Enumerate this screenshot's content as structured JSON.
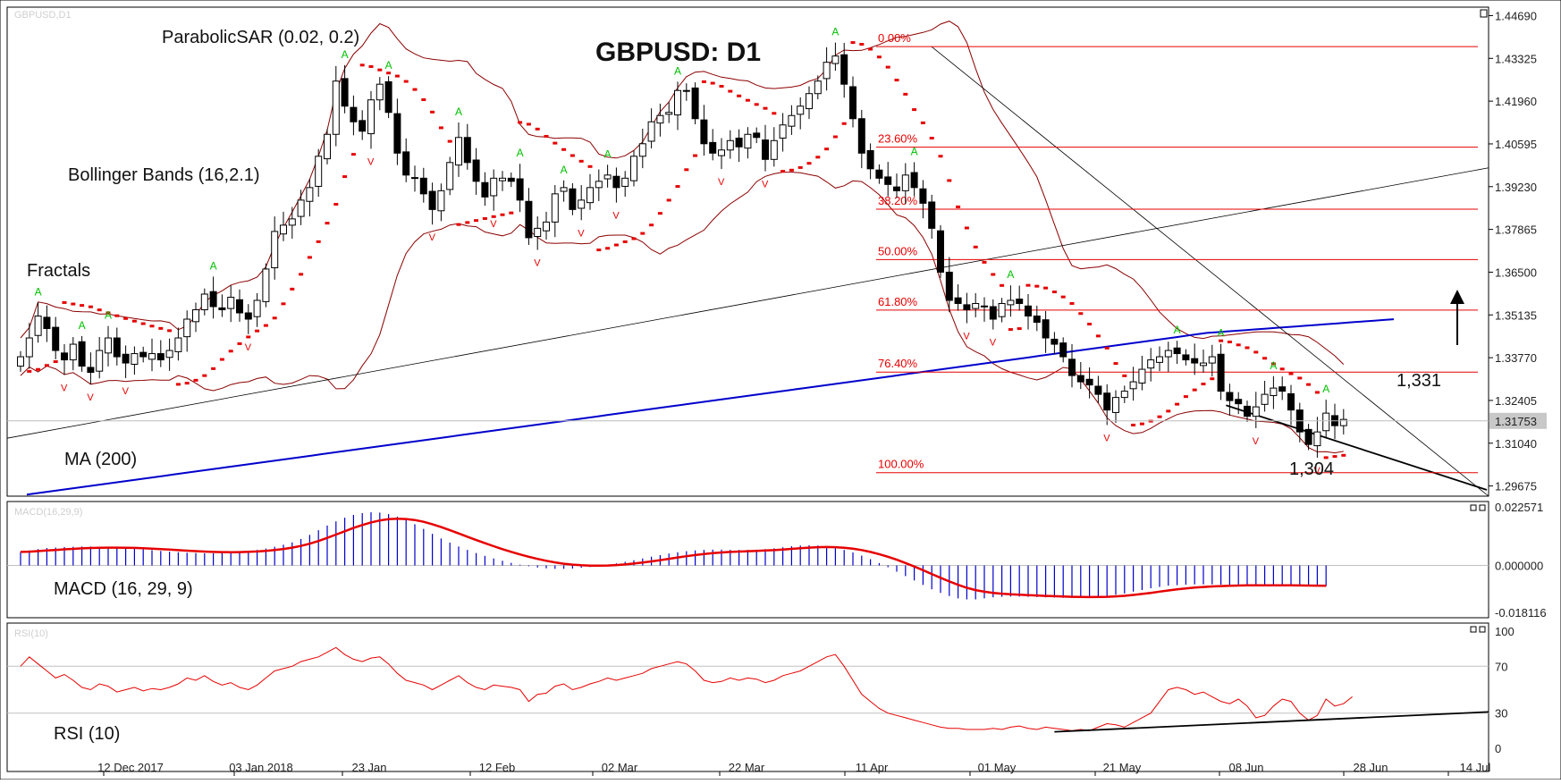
{
  "chart_data": [
    {
      "type": "candlestick",
      "title": "GBPUSD: D1",
      "symbol_title": "GBPUSD,D1",
      "price_axis_ticks": [
        "1.44690",
        "1.43325",
        "1.41960",
        "1.40595",
        "1.39230",
        "1.37865",
        "1.36500",
        "1.35135",
        "1.33770",
        "1.32405",
        "1.31040",
        "1.29675"
      ],
      "current_price": "1.31753",
      "date_ticks": [
        "12 Dec 2017",
        "03 Jan 2018",
        "23 Jan",
        "12 Feb",
        "02 Mar",
        "22 Mar",
        "11 Apr",
        "01 May",
        "21 May",
        "08 Jun",
        "28 Jun",
        "14 Jul"
      ],
      "ylim": [
        1.2935,
        1.4496
      ],
      "closes": [
        1.338,
        1.344,
        1.351,
        1.347,
        1.34,
        1.337,
        1.342,
        1.335,
        1.333,
        1.34,
        1.344,
        1.338,
        1.336,
        1.339,
        1.338,
        1.339,
        1.337,
        1.34,
        1.344,
        1.35,
        1.353,
        1.358,
        1.354,
        1.353,
        1.357,
        1.352,
        1.35,
        1.356,
        1.366,
        1.378,
        1.38,
        1.382,
        1.388,
        1.392,
        1.402,
        1.409,
        1.426,
        1.418,
        1.413,
        1.41,
        1.42,
        1.425,
        1.416,
        1.403,
        1.396,
        1.395,
        1.39,
        1.385,
        1.391,
        1.4,
        1.408,
        1.4,
        1.394,
        1.389,
        1.395,
        1.395,
        1.394,
        1.388,
        1.376,
        1.379,
        1.381,
        1.39,
        1.392,
        1.385,
        1.388,
        1.392,
        1.394,
        1.396,
        1.392,
        1.395,
        1.402,
        1.406,
        1.413,
        1.415,
        1.416,
        1.423,
        1.423,
        1.414,
        1.406,
        1.403,
        1.404,
        1.407,
        1.405,
        1.409,
        1.408,
        1.401,
        1.407,
        1.412,
        1.415,
        1.418,
        1.422,
        1.426,
        1.432,
        1.434,
        1.425,
        1.414,
        1.403,
        1.398,
        1.395,
        1.393,
        1.391,
        1.396,
        1.392,
        1.387,
        1.379,
        1.365,
        1.356,
        1.355,
        1.353,
        1.355,
        1.354,
        1.35,
        1.355,
        1.356,
        1.355,
        1.351,
        1.349,
        1.344,
        1.342,
        1.338,
        1.332,
        1.33,
        1.329,
        1.326,
        1.321,
        1.325,
        1.327,
        1.33,
        1.334,
        1.337,
        1.338,
        1.34,
        1.339,
        1.337,
        1.336,
        1.336,
        1.338,
        1.327,
        1.324,
        1.323,
        1.319,
        1.322,
        1.326,
        1.328,
        1.327,
        1.321,
        1.314,
        1.31,
        1.314,
        1.32,
        1.316,
        1.318
      ],
      "indicators": [
        {
          "name": "ParabolicSAR (0.02, 0.2)",
          "color": "#e60000"
        },
        {
          "name": "Bollinger Bands (16,2.1)",
          "color": "#8b0000"
        },
        {
          "name": "Fractals",
          "colors": [
            "#00c000",
            "#e60000"
          ]
        },
        {
          "name": "MA (200)",
          "color": "#0000cc"
        }
      ],
      "fibonacci": {
        "color": "#e60000",
        "levels": [
          {
            "label": "0.00%",
            "price": 1.437
          },
          {
            "label": "23.60%",
            "price": 1.4049
          },
          {
            "label": "38.20%",
            "price": 1.3851
          },
          {
            "label": "50.00%",
            "price": 1.369
          },
          {
            "label": "61.80%",
            "price": 1.3529
          },
          {
            "label": "76.40%",
            "price": 1.3331
          },
          {
            "label": "100.00%",
            "price": 1.301
          }
        ]
      },
      "annotations": {
        "resistance": "1,331",
        "support": "1,304"
      }
    },
    {
      "type": "histogram",
      "title": "MACD (16, 29, 9)",
      "panel_header": "MACD(16,29,9)",
      "axis_ticks": [
        "0.022571",
        "0.000000",
        "-0.018116"
      ],
      "ylim": [
        -0.0181,
        0.0226
      ],
      "histogram_values": [
        0.0052,
        0.0058,
        0.0063,
        0.0067,
        0.0069,
        0.0071,
        0.0072,
        0.0073,
        0.0073,
        0.0072,
        0.007,
        0.0069,
        0.0067,
        0.0065,
        0.0062,
        0.0059,
        0.0056,
        0.0053,
        0.0051,
        0.0049,
        0.0048,
        0.0047,
        0.0047,
        0.0048,
        0.005,
        0.0053,
        0.0056,
        0.006,
        0.0065,
        0.0072,
        0.008,
        0.0089,
        0.0102,
        0.0118,
        0.0136,
        0.0154,
        0.017,
        0.0184,
        0.0195,
        0.0202,
        0.0205,
        0.0204,
        0.0198,
        0.0188,
        0.0175,
        0.0159,
        0.0141,
        0.0122,
        0.0104,
        0.0088,
        0.0073,
        0.006,
        0.0048,
        0.0037,
        0.0027,
        0.0018,
        0.001,
        0.0003,
        -0.0003,
        -0.0008,
        -0.0011,
        -0.0013,
        -0.0013,
        -0.0012,
        -0.0009,
        -0.0006,
        -0.0002,
        0.0003,
        0.0008,
        0.0014,
        0.002,
        0.0027,
        0.0034,
        0.004,
        0.0046,
        0.0051,
        0.0055,
        0.0058,
        0.006,
        0.0061,
        0.0061,
        0.006,
        0.006,
        0.006,
        0.0061,
        0.0063,
        0.0066,
        0.007,
        0.0074,
        0.0077,
        0.0078,
        0.0077,
        0.0074,
        0.0068,
        0.006,
        0.005,
        0.0038,
        0.0024,
        0.0009,
        -0.0007,
        -0.0024,
        -0.0041,
        -0.0058,
        -0.0075,
        -0.0092,
        -0.0106,
        -0.0118,
        -0.0127,
        -0.0131,
        -0.0131,
        -0.0127,
        -0.0123,
        -0.0121,
        -0.012,
        -0.012,
        -0.0121,
        -0.0122,
        -0.0123,
        -0.0124,
        -0.0125,
        -0.0125,
        -0.0124,
        -0.0123,
        -0.0121,
        -0.0118,
        -0.0113,
        -0.0108,
        -0.0101,
        -0.0095,
        -0.0088,
        -0.0083,
        -0.0078,
        -0.0076,
        -0.0074,
        -0.0073,
        -0.0073,
        -0.0073,
        -0.0074,
        -0.0074,
        -0.0074,
        -0.0074,
        -0.0075,
        -0.0076,
        -0.0076,
        -0.0077,
        -0.0078,
        -0.0078,
        -0.0079,
        -0.0079,
        -0.008
      ],
      "signal_color": "#e60000",
      "histogram_color": "#0000cc"
    },
    {
      "type": "line",
      "title": "RSI (10)",
      "panel_header": "RSI(10)",
      "axis_ticks": [
        "100",
        "70",
        "30",
        "0"
      ],
      "ylim": [
        0,
        100
      ],
      "levels": [
        70,
        30
      ],
      "values": [
        70,
        78,
        72,
        66,
        60,
        63,
        58,
        52,
        50,
        55,
        53,
        48,
        50,
        52,
        49,
        51,
        50,
        52,
        55,
        60,
        58,
        62,
        57,
        54,
        56,
        52,
        50,
        54,
        60,
        66,
        68,
        70,
        74,
        76,
        78,
        82,
        86,
        80,
        76,
        74,
        77,
        78,
        72,
        64,
        58,
        56,
        54,
        50,
        54,
        58,
        62,
        56,
        52,
        50,
        54,
        53,
        52,
        50,
        40,
        46,
        47,
        53,
        55,
        50,
        52,
        55,
        57,
        60,
        58,
        60,
        62,
        64,
        68,
        70,
        72,
        74,
        72,
        66,
        58,
        56,
        57,
        60,
        58,
        60,
        59,
        56,
        58,
        62,
        64,
        66,
        70,
        74,
        78,
        80,
        70,
        58,
        46,
        40,
        34,
        30,
        28,
        26,
        24,
        22,
        20,
        18,
        17,
        17,
        16,
        16,
        16,
        17,
        16,
        18,
        19,
        17,
        16,
        18,
        17,
        16,
        15,
        16,
        15,
        18,
        21,
        20,
        18,
        22,
        26,
        30,
        40,
        50,
        52,
        50,
        46,
        48,
        44,
        40,
        38,
        42,
        36,
        26,
        28,
        36,
        42,
        40,
        30,
        24,
        28,
        42,
        36,
        38,
        44
      ],
      "line_color": "#e60000",
      "trendline_label": ""
    }
  ]
}
